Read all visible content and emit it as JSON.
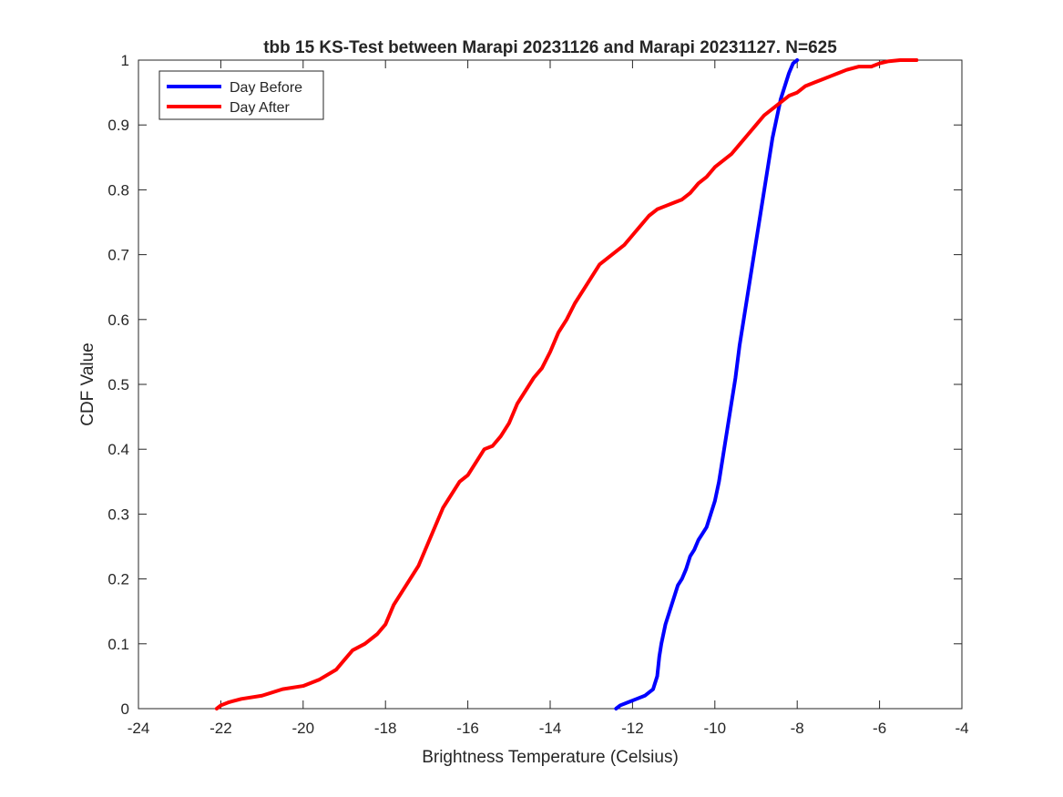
{
  "chart_data": {
    "type": "line",
    "title": "tbb 15 KS-Test between Marapi 20231126 and Marapi 20231127. N=625",
    "xlabel": "Brightness Temperature (Celsius)",
    "ylabel": "CDF Value",
    "xlim": [
      -24,
      -4
    ],
    "ylim": [
      0,
      1
    ],
    "xticks": [
      -24,
      -22,
      -20,
      -18,
      -16,
      -14,
      -12,
      -10,
      -8,
      -6,
      -4
    ],
    "yticks": [
      0,
      0.1,
      0.2,
      0.3,
      0.4,
      0.5,
      0.6,
      0.7,
      0.8,
      0.9,
      1
    ],
    "xtick_labels": [
      "-24",
      "-22",
      "-20",
      "-18",
      "-16",
      "-14",
      "-12",
      "-10",
      "-8",
      "-6",
      "-4"
    ],
    "ytick_labels": [
      "0",
      "0.1",
      "0.2",
      "0.3",
      "0.4",
      "0.5",
      "0.6",
      "0.7",
      "0.8",
      "0.9",
      "1"
    ],
    "grid": false,
    "legend_position": "top-left",
    "series": [
      {
        "name": "Day Before",
        "color": "#0000ff",
        "x": [
          -12.4,
          -12.3,
          -12.1,
          -11.9,
          -11.7,
          -11.5,
          -11.4,
          -11.35,
          -11.3,
          -11.2,
          -11.1,
          -11.0,
          -10.9,
          -10.8,
          -10.7,
          -10.6,
          -10.5,
          -10.4,
          -10.3,
          -10.2,
          -10.1,
          -10.0,
          -9.9,
          -9.8,
          -9.7,
          -9.6,
          -9.5,
          -9.4,
          -9.3,
          -9.2,
          -9.1,
          -9.0,
          -8.9,
          -8.8,
          -8.7,
          -8.6,
          -8.5,
          -8.4,
          -8.3,
          -8.2,
          -8.1,
          -8.0
        ],
        "y": [
          0.0,
          0.005,
          0.01,
          0.015,
          0.02,
          0.03,
          0.05,
          0.08,
          0.1,
          0.13,
          0.15,
          0.17,
          0.19,
          0.2,
          0.215,
          0.235,
          0.245,
          0.26,
          0.27,
          0.28,
          0.3,
          0.32,
          0.35,
          0.39,
          0.43,
          0.47,
          0.51,
          0.56,
          0.6,
          0.64,
          0.68,
          0.72,
          0.76,
          0.8,
          0.84,
          0.88,
          0.91,
          0.94,
          0.96,
          0.98,
          0.995,
          1.0
        ]
      },
      {
        "name": "Day After",
        "color": "#ff0000",
        "x": [
          -22.1,
          -22.0,
          -21.8,
          -21.5,
          -21.0,
          -20.5,
          -20.0,
          -19.6,
          -19.2,
          -19.0,
          -18.8,
          -18.5,
          -18.2,
          -18.0,
          -17.8,
          -17.6,
          -17.4,
          -17.2,
          -17.0,
          -16.8,
          -16.6,
          -16.4,
          -16.2,
          -16.0,
          -15.8,
          -15.6,
          -15.4,
          -15.2,
          -15.0,
          -14.8,
          -14.6,
          -14.4,
          -14.2,
          -14.0,
          -13.8,
          -13.6,
          -13.4,
          -13.2,
          -13.0,
          -12.8,
          -12.6,
          -12.4,
          -12.2,
          -12.0,
          -11.8,
          -11.6,
          -11.4,
          -11.2,
          -11.0,
          -10.8,
          -10.6,
          -10.4,
          -10.2,
          -10.0,
          -9.8,
          -9.6,
          -9.4,
          -9.2,
          -9.0,
          -8.8,
          -8.6,
          -8.4,
          -8.2,
          -8.0,
          -7.8,
          -7.6,
          -7.4,
          -7.2,
          -7.0,
          -6.8,
          -6.5,
          -6.2,
          -6.0,
          -5.8,
          -5.5,
          -5.1
        ],
        "y": [
          0.0,
          0.005,
          0.01,
          0.015,
          0.02,
          0.03,
          0.035,
          0.045,
          0.06,
          0.075,
          0.09,
          0.1,
          0.115,
          0.13,
          0.16,
          0.18,
          0.2,
          0.22,
          0.25,
          0.28,
          0.31,
          0.33,
          0.35,
          0.36,
          0.38,
          0.4,
          0.405,
          0.42,
          0.44,
          0.47,
          0.49,
          0.51,
          0.525,
          0.55,
          0.58,
          0.6,
          0.625,
          0.645,
          0.665,
          0.685,
          0.695,
          0.705,
          0.715,
          0.73,
          0.745,
          0.76,
          0.77,
          0.775,
          0.78,
          0.785,
          0.795,
          0.81,
          0.82,
          0.835,
          0.845,
          0.855,
          0.87,
          0.885,
          0.9,
          0.915,
          0.925,
          0.935,
          0.945,
          0.95,
          0.96,
          0.965,
          0.97,
          0.975,
          0.98,
          0.985,
          0.99,
          0.99,
          0.995,
          0.998,
          1.0,
          1.0
        ]
      }
    ]
  }
}
